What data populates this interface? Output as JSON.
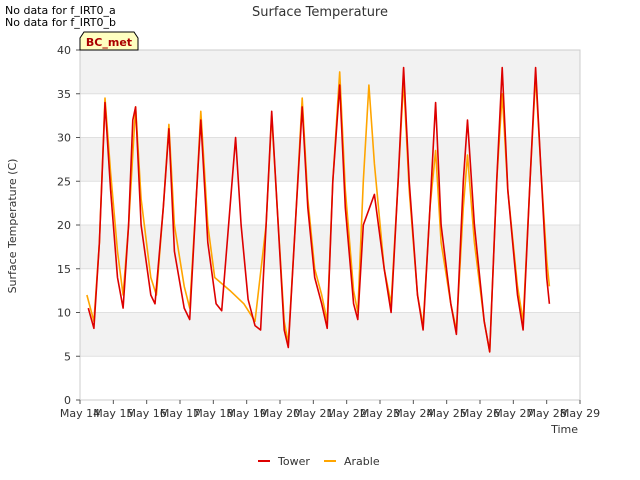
{
  "notes": [
    "No data for f_IRT0_a",
    "No data for f_IRT0_b"
  ],
  "badge": "BC_met",
  "chart_data": {
    "type": "line",
    "title": "Surface Temperature",
    "xlabel": "Time",
    "ylabel": "Surface Temperature (C)",
    "ylim": [
      0,
      40
    ],
    "yticks": [
      0,
      5,
      10,
      15,
      20,
      25,
      30,
      35,
      40
    ],
    "xlim": [
      "May 14",
      "May 29"
    ],
    "xticks": [
      "May 14",
      "May 15",
      "May 16",
      "May 17",
      "May 18",
      "May 19",
      "May 20",
      "May 21",
      "May 22",
      "May 23",
      "May 24",
      "May 25",
      "May 26",
      "May 27",
      "May 28",
      "May 29"
    ],
    "grid": "horizontal bands",
    "legend": "bottom-center",
    "series": [
      {
        "name": "Tower",
        "color": "#dd0000",
        "points": [
          [
            "May 14 06:00",
            10.5
          ],
          [
            "May 14 10:00",
            8.2
          ],
          [
            "May 14 14:00",
            18
          ],
          [
            "May 14 18:00",
            34
          ],
          [
            "May 14 22:00",
            24
          ],
          [
            "May 15 03:00",
            14
          ],
          [
            "May 15 07:00",
            10.5
          ],
          [
            "May 15 11:00",
            20
          ],
          [
            "May 15 14:00",
            32
          ],
          [
            "May 15 16:00",
            33.5
          ],
          [
            "May 15 20:00",
            20
          ],
          [
            "May 16 03:00",
            12
          ],
          [
            "May 16 06:00",
            11
          ],
          [
            "May 16 12:00",
            22
          ],
          [
            "May 16 16:00",
            31
          ],
          [
            "May 16 20:00",
            17
          ],
          [
            "May 17 03:00",
            10.5
          ],
          [
            "May 17 07:00",
            9.2
          ],
          [
            "May 17 12:00",
            24
          ],
          [
            "May 17 15:00",
            32
          ],
          [
            "May 17 20:00",
            18
          ],
          [
            "May 18 02:00",
            11
          ],
          [
            "May 18 06:00",
            10.2
          ],
          [
            "May 18 12:00",
            22
          ],
          [
            "May 18 16:00",
            30
          ],
          [
            "May 18 20:00",
            20
          ],
          [
            "May 19 01:00",
            11.5
          ],
          [
            "May 19 06:00",
            8.5
          ],
          [
            "May 19 10:00",
            8
          ],
          [
            "May 19 14:00",
            20
          ],
          [
            "May 19 18:00",
            33
          ],
          [
            "May 19 22:00",
            22
          ],
          [
            "May 20 03:00",
            8
          ],
          [
            "May 20 06:00",
            6
          ],
          [
            "May 20 11:00",
            20
          ],
          [
            "May 20 16:00",
            33.5
          ],
          [
            "May 20 20:00",
            22
          ],
          [
            "May 21 01:00",
            14
          ],
          [
            "May 21 06:00",
            11
          ],
          [
            "May 21 10:00",
            8.2
          ],
          [
            "May 21 14:00",
            25
          ],
          [
            "May 21 19:00",
            36
          ],
          [
            "May 21 23:00",
            22
          ],
          [
            "May 22 05:00",
            11
          ],
          [
            "May 22 08:00",
            9.2
          ],
          [
            "May 22 12:00",
            20
          ],
          [
            "May 22 20:00",
            23.5
          ],
          [
            "May 23 03:00",
            15
          ],
          [
            "May 23 08:00",
            10
          ],
          [
            "May 23 13:00",
            25
          ],
          [
            "May 23 17:00",
            38
          ],
          [
            "May 23 21:00",
            25
          ],
          [
            "May 24 03:00",
            12
          ],
          [
            "May 24 07:00",
            8
          ],
          [
            "May 24 12:00",
            22
          ],
          [
            "May 24 16:00",
            34
          ],
          [
            "May 24 20:00",
            20
          ],
          [
            "May 25 03:00",
            11
          ],
          [
            "May 25 07:00",
            7.5
          ],
          [
            "May 25 12:00",
            25
          ],
          [
            "May 25 15:00",
            32
          ],
          [
            "May 25 20:00",
            20
          ],
          [
            "May 26 03:00",
            9
          ],
          [
            "May 26 07:00",
            5.5
          ],
          [
            "May 26 12:00",
            25
          ],
          [
            "May 26 16:00",
            38
          ],
          [
            "May 26 20:00",
            24
          ],
          [
            "May 27 03:00",
            12
          ],
          [
            "May 27 07:00",
            8
          ],
          [
            "May 27 12:00",
            25
          ],
          [
            "May 27 16:00",
            38
          ],
          [
            "May 27 20:00",
            26
          ],
          [
            "May 28 00:00",
            14
          ],
          [
            "May 28 02:00",
            11
          ]
        ]
      },
      {
        "name": "Arable",
        "color": "#ffa500",
        "points": [
          [
            "May 14 05:00",
            12
          ],
          [
            "May 14 10:00",
            9
          ],
          [
            "May 14 14:00",
            18
          ],
          [
            "May 14 18:00",
            34.5
          ],
          [
            "May 14 22:00",
            26
          ],
          [
            "May 15 03:00",
            17
          ],
          [
            "May 15 07:00",
            12
          ],
          [
            "May 15 11:00",
            20
          ],
          [
            "May 15 16:00",
            33.5
          ],
          [
            "May 15 20:00",
            23
          ],
          [
            "May 16 03:00",
            14
          ],
          [
            "May 16 07:00",
            12
          ],
          [
            "May 16 12:00",
            22
          ],
          [
            "May 16 16:00",
            31.5
          ],
          [
            "May 16 20:00",
            20
          ],
          [
            "May 17 03:00",
            13
          ],
          [
            "May 17 07:00",
            10.5
          ],
          [
            "May 17 12:00",
            24
          ],
          [
            "May 17 15:00",
            33
          ],
          [
            "May 17 20:00",
            20
          ],
          [
            "May 18 01:00",
            14
          ],
          [
            "May 18 12:00",
            12.5
          ],
          [
            "May 18 22:00",
            11
          ],
          [
            "May 19 06:00",
            9
          ],
          [
            "May 19 14:00",
            20
          ],
          [
            "May 19 18:00",
            32.5
          ],
          [
            "May 19 22:00",
            22
          ],
          [
            "May 20 03:00",
            9
          ],
          [
            "May 20 06:00",
            6.5
          ],
          [
            "May 20 11:00",
            20
          ],
          [
            "May 20 16:00",
            34.5
          ],
          [
            "May 20 20:00",
            23
          ],
          [
            "May 21 01:00",
            15
          ],
          [
            "May 21 06:00",
            12
          ],
          [
            "May 21 10:00",
            9
          ],
          [
            "May 21 14:00",
            25
          ],
          [
            "May 21 19:00",
            37.5
          ],
          [
            "May 21 23:00",
            24
          ],
          [
            "May 22 05:00",
            12.5
          ],
          [
            "May 22 08:00",
            10
          ],
          [
            "May 22 12:00",
            25
          ],
          [
            "May 22 16:00",
            36
          ],
          [
            "May 22 20:00",
            27
          ],
          [
            "May 23 03:00",
            15
          ],
          [
            "May 23 08:00",
            11
          ],
          [
            "May 23 13:00",
            25
          ],
          [
            "May 23 17:00",
            36.5
          ],
          [
            "May 23 21:00",
            24
          ],
          [
            "May 24 03:00",
            12
          ],
          [
            "May 24 07:00",
            8.5
          ],
          [
            "May 24 12:00",
            22
          ],
          [
            "May 24 16:00",
            28.5
          ],
          [
            "May 24 20:00",
            18
          ],
          [
            "May 25 03:00",
            11
          ],
          [
            "May 25 07:00",
            8
          ],
          [
            "May 25 12:00",
            22
          ],
          [
            "May 25 15:00",
            28
          ],
          [
            "May 25 20:00",
            18
          ],
          [
            "May 26 03:00",
            9
          ],
          [
            "May 26 07:00",
            5.5
          ],
          [
            "May 26 12:00",
            25
          ],
          [
            "May 26 16:00",
            35
          ],
          [
            "May 26 20:00",
            24
          ],
          [
            "May 27 03:00",
            13
          ],
          [
            "May 27 07:00",
            9
          ],
          [
            "May 27 12:00",
            25
          ],
          [
            "May 27 16:00",
            37
          ],
          [
            "May 27 20:00",
            26
          ],
          [
            "May 28 00:00",
            16
          ],
          [
            "May 28 02:00",
            13
          ]
        ]
      }
    ]
  }
}
